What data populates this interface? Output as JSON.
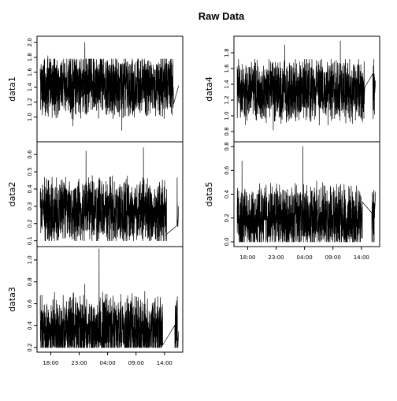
{
  "chart_data": {
    "title": "Raw Data",
    "type": "line",
    "x_ticks": [
      "18:00",
      "23:00",
      "04:00",
      "09:00",
      "14:00"
    ],
    "x_tick_hours": [
      18,
      23,
      28,
      33,
      38
    ],
    "x_range_hours": [
      16.0,
      40.8
    ],
    "grid": false,
    "panels": [
      {
        "name": "data1",
        "ylabel": "data1",
        "ylim": [
          0.7,
          2.05
        ],
        "yticks": [
          1.0,
          1.2,
          1.4,
          1.6,
          1.8,
          2.0
        ],
        "ytick_labels": [
          "1.0",
          "1.2",
          "1.4",
          "1.6",
          "1.8",
          "2.0"
        ],
        "baseline": 1.42,
        "range_min": 0.82,
        "range_max": 2.02,
        "samples": [
          {
            "x": 17.5,
            "y": 1.82
          },
          {
            "x": 21.9,
            "y": 0.88
          },
          {
            "x": 24.0,
            "y": 2.0
          },
          {
            "x": 30.5,
            "y": 0.82
          },
          {
            "x": 37.4,
            "y": 1.22
          },
          {
            "x": 40.5,
            "y": 1.42
          }
        ],
        "gaps": [
          [
            39.6,
            40.4
          ]
        ]
      },
      {
        "name": "data2",
        "ylabel": "data2",
        "ylim": [
          0.08,
          0.66
        ],
        "yticks": [
          0.1,
          0.2,
          0.3,
          0.4,
          0.5,
          0.6
        ],
        "ytick_labels": [
          "0.1",
          "0.2",
          "0.3",
          "0.4",
          "0.5",
          "0.6"
        ],
        "baseline": 0.27,
        "range_min": 0.1,
        "range_max": 0.64,
        "samples": [
          {
            "x": 17.0,
            "y": 0.41
          },
          {
            "x": 24.2,
            "y": 0.62
          },
          {
            "x": 34.3,
            "y": 0.64
          },
          {
            "x": 37.8,
            "y": 0.22
          },
          {
            "x": 40.5,
            "y": 0.3
          }
        ],
        "gaps": [
          [
            38.4,
            40.2
          ]
        ]
      },
      {
        "name": "data3",
        "ylabel": "data3",
        "ylim": [
          0.18,
          1.1
        ],
        "yticks": [
          0.2,
          0.4,
          0.6,
          0.8,
          1.0
        ],
        "ytick_labels": [
          "0.2",
          "0.4",
          "0.6",
          "0.8",
          "1.0"
        ],
        "baseline": 0.36,
        "range_min": 0.2,
        "range_max": 1.1,
        "samples": [
          {
            "x": 17.0,
            "y": 0.22
          },
          {
            "x": 24.0,
            "y": 0.78
          },
          {
            "x": 26.5,
            "y": 1.1
          },
          {
            "x": 37.5,
            "y": 0.36
          },
          {
            "x": 40.5,
            "y": 0.35
          }
        ],
        "gaps": [
          [
            37.7,
            39.8
          ]
        ]
      },
      {
        "name": "data4",
        "ylabel": "data4",
        "ylim": [
          0.7,
          1.98
        ],
        "yticks": [
          0.8,
          1.0,
          1.2,
          1.4,
          1.6,
          1.8
        ],
        "ytick_labels": [
          "0.8",
          "1.0",
          "1.2",
          "1.4",
          "1.6",
          "1.8"
        ],
        "baseline": 1.32,
        "range_min": 0.8,
        "range_max": 1.95,
        "samples": [
          {
            "x": 22.5,
            "y": 0.82
          },
          {
            "x": 24.5,
            "y": 1.9
          },
          {
            "x": 34.3,
            "y": 1.95
          },
          {
            "x": 38.5,
            "y": 1.2
          },
          {
            "x": 40.5,
            "y": 1.45
          }
        ],
        "gaps": [
          [
            38.6,
            40.0
          ]
        ]
      },
      {
        "name": "data5",
        "ylabel": "data5",
        "ylim": [
          -0.02,
          0.82
        ],
        "yticks": [
          0.0,
          0.2,
          0.4,
          0.6,
          0.8
        ],
        "ytick_labels": [
          "0.0",
          "0.2",
          "0.4",
          "0.6",
          "0.8"
        ],
        "baseline": 0.2,
        "range_min": 0.0,
        "range_max": 0.8,
        "samples": [
          {
            "x": 17.0,
            "y": 0.68
          },
          {
            "x": 27.7,
            "y": 0.8
          },
          {
            "x": 38.0,
            "y": 0.15
          },
          {
            "x": 40.5,
            "y": 0.42
          }
        ],
        "gaps": [
          [
            38.2,
            39.8
          ]
        ]
      }
    ]
  }
}
